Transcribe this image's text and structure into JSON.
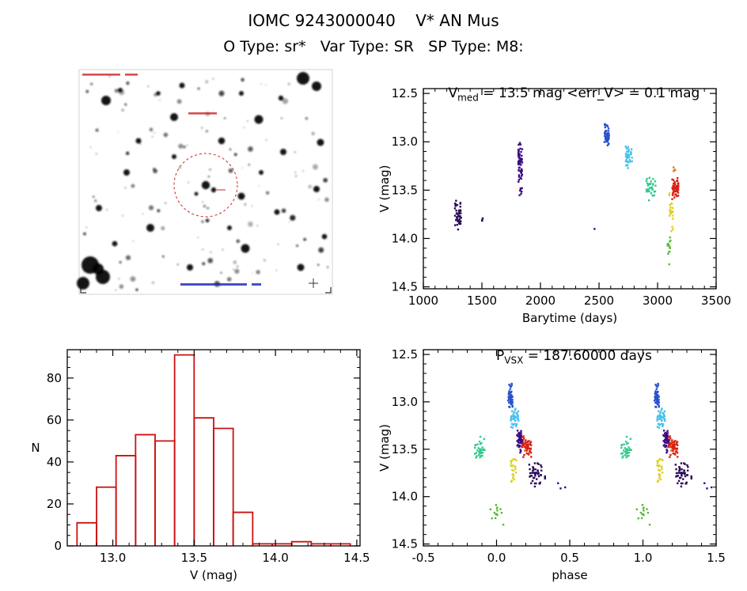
{
  "header": {
    "title": "IOMC 9243000040    V* AN Mus",
    "subtitle": "O Type: sr*   Var Type: SR   SP Type: M8:"
  },
  "chart_data": [
    {
      "type": "scatter",
      "mount": "lightcurve-plot",
      "title": {
        "main": "V",
        "sub": "med",
        "rest": " = 13.5 mag <err_V> = 0.1 mag"
      },
      "xlabel": "Barytime (days)",
      "ylabel": "V (mag)",
      "xlim": [
        1000,
        3500
      ],
      "ylim": [
        12.45,
        14.52
      ],
      "xticks": [
        {
          "v": 1000,
          "label": "1000"
        },
        {
          "v": 1500,
          "label": "1500"
        },
        {
          "v": 2000,
          "label": "2000"
        },
        {
          "v": 2500,
          "label": "2500"
        },
        {
          "v": 3000,
          "label": "3000"
        },
        {
          "v": 3500,
          "label": "3500"
        }
      ],
      "yticks": [
        {
          "v": 12.5,
          "label": "12.5"
        },
        {
          "v": 13.0,
          "label": "13.0"
        },
        {
          "v": 13.5,
          "label": "13.5"
        },
        {
          "v": 14.0,
          "label": "14.0"
        },
        {
          "v": 14.5,
          "label": "14.5"
        }
      ],
      "x_minor": 100,
      "y_minor": 0.1,
      "clusters": [
        {
          "color": "#2a0a57",
          "x": 1295,
          "x_spread": 55,
          "y_min": 13.6,
          "y_max": 13.92,
          "n": 45
        },
        {
          "color": "#2a0a57",
          "x": 1502,
          "x_spread": 12,
          "y_min": 13.76,
          "y_max": 13.88,
          "n": 3
        },
        {
          "color": "#3d0b82",
          "x": 1828,
          "x_spread": 34,
          "y_min": 12.98,
          "y_max": 13.44,
          "n": 55
        },
        {
          "color": "#3d0b82",
          "x": 1832,
          "x_spread": 25,
          "y_min": 13.44,
          "y_max": 13.57,
          "n": 8
        },
        {
          "color": "#1a1a8c",
          "x": 2462,
          "x_spread": 2,
          "y_min": 13.88,
          "y_max": 13.91,
          "n": 1
        },
        {
          "color": "#2a52cc",
          "x": 2565,
          "x_spread": 40,
          "y_min": 12.78,
          "y_max": 13.1,
          "n": 50
        },
        {
          "color": "#49c0ea",
          "x": 2755,
          "x_spread": 55,
          "y_min": 13.04,
          "y_max": 13.3,
          "n": 40
        },
        {
          "color": "#35c98e",
          "x": 2945,
          "x_spread": 80,
          "y_min": 13.36,
          "y_max": 13.62,
          "n": 35
        },
        {
          "color": "#57b93a",
          "x": 3098,
          "x_spread": 27,
          "y_min": 13.92,
          "y_max": 14.34,
          "n": 14
        },
        {
          "color": "#ddd01e",
          "x": 3118,
          "x_spread": 35,
          "y_min": 13.48,
          "y_max": 13.95,
          "n": 22
        },
        {
          "color": "#e0761f",
          "x": 3142,
          "x_spread": 18,
          "y_min": 13.24,
          "y_max": 13.34,
          "n": 4
        },
        {
          "color": "#d82012",
          "x": 3150,
          "x_spread": 55,
          "y_min": 13.36,
          "y_max": 13.6,
          "n": 55
        }
      ]
    },
    {
      "type": "histogram",
      "mount": "histogram-plot",
      "xlabel": "V (mag)",
      "ylabel": "N",
      "ylabel_rotate": false,
      "xlim": [
        12.72,
        14.52
      ],
      "ylim": [
        93.5,
        0
      ],
      "xticks": [
        {
          "v": 13.0,
          "label": "13.0"
        },
        {
          "v": 13.5,
          "label": "13.5"
        },
        {
          "v": 14.0,
          "label": "14.0"
        },
        {
          "v": 14.5,
          "label": "14.5"
        }
      ],
      "yticks": [
        {
          "v": 0,
          "label": "0"
        },
        {
          "v": 20,
          "label": "20"
        },
        {
          "v": 40,
          "label": "40"
        },
        {
          "v": 60,
          "label": "60"
        },
        {
          "v": 80,
          "label": "80"
        }
      ],
      "x_minor": 0.1,
      "y_minor": 5,
      "bar_color": "#cc1111",
      "bars": [
        [
          12.78,
          12.9,
          11
        ],
        [
          12.9,
          13.02,
          28
        ],
        [
          13.02,
          13.14,
          43
        ],
        [
          13.14,
          13.26,
          53
        ],
        [
          13.26,
          13.38,
          50
        ],
        [
          13.38,
          13.5,
          91
        ],
        [
          13.5,
          13.62,
          61
        ],
        [
          13.62,
          13.74,
          56
        ],
        [
          13.74,
          13.86,
          16
        ],
        [
          13.86,
          13.98,
          1
        ],
        [
          13.98,
          14.1,
          1
        ],
        [
          14.1,
          14.22,
          2
        ],
        [
          14.22,
          14.34,
          1
        ],
        [
          14.34,
          14.46,
          1
        ]
      ]
    },
    {
      "type": "scatter",
      "mount": "phase-plot",
      "title": {
        "main": "P",
        "sub": "VSX",
        "rest": " = 187.60000 days"
      },
      "xlabel": "phase",
      "ylabel": "V (mag)",
      "xlim": [
        -0.5,
        1.5
      ],
      "ylim": [
        12.45,
        14.52
      ],
      "xticks": [
        {
          "v": -0.5,
          "label": "-0.5"
        },
        {
          "v": 0.0,
          "label": "0.0"
        },
        {
          "v": 0.5,
          "label": "0.5"
        },
        {
          "v": 1.0,
          "label": "1.0"
        },
        {
          "v": 1.5,
          "label": "1.5"
        }
      ],
      "yticks": [
        {
          "v": 12.5,
          "label": "12.5"
        },
        {
          "v": 13.0,
          "label": "13.0"
        },
        {
          "v": 13.5,
          "label": "13.5"
        },
        {
          "v": 14.0,
          "label": "14.0"
        },
        {
          "v": 14.5,
          "label": "14.5"
        }
      ],
      "x_minor": 0.1,
      "y_minor": 0.1,
      "duplicate_offset": 1.0,
      "clusters": [
        {
          "color": "#35c98e",
          "x": -0.115,
          "x_spread": 0.075,
          "y_min": 13.36,
          "y_max": 13.62,
          "n": 35
        },
        {
          "color": "#57b93a",
          "x": 0.005,
          "x_spread": 0.1,
          "y_min": 13.92,
          "y_max": 14.34,
          "n": 14
        },
        {
          "color": "#2a52cc",
          "x": 0.095,
          "x_spread": 0.032,
          "y_min": 12.78,
          "y_max": 13.1,
          "n": 50
        },
        {
          "color": "#49c0ea",
          "x": 0.125,
          "x_spread": 0.055,
          "y_min": 13.04,
          "y_max": 13.3,
          "n": 40
        },
        {
          "color": "#ddd01e",
          "x": 0.115,
          "x_spread": 0.04,
          "y_min": 13.48,
          "y_max": 13.95,
          "n": 22
        },
        {
          "color": "#3d0b82",
          "x": 0.16,
          "x_spread": 0.04,
          "y_min": 13.28,
          "y_max": 13.57,
          "n": 45
        },
        {
          "color": "#e0761f",
          "x": 0.185,
          "x_spread": 0.02,
          "y_min": 13.4,
          "y_max": 13.55,
          "n": 6
        },
        {
          "color": "#d82012",
          "x": 0.205,
          "x_spread": 0.065,
          "y_min": 13.36,
          "y_max": 13.6,
          "n": 50
        },
        {
          "color": "#2a0a57",
          "x": 0.265,
          "x_spread": 0.085,
          "y_min": 13.6,
          "y_max": 13.92,
          "n": 45
        },
        {
          "color": "#2a0a57",
          "x": 0.335,
          "x_spread": 0.012,
          "y_min": 13.76,
          "y_max": 13.88,
          "n": 3
        },
        {
          "color": "#1a1a8c",
          "x": 0.43,
          "x_spread": 0.09,
          "y_min": 13.85,
          "y_max": 13.97,
          "n": 3
        }
      ]
    },
    {
      "type": "image",
      "mount": "finder-chart",
      "description": "Inverted grayscale star-field finder chart with dashed circle marking the target star",
      "target_circle_color": "#cc2222",
      "annotation_colors": {
        "top": "#cc2222",
        "bottom": "#2233bb"
      }
    }
  ]
}
